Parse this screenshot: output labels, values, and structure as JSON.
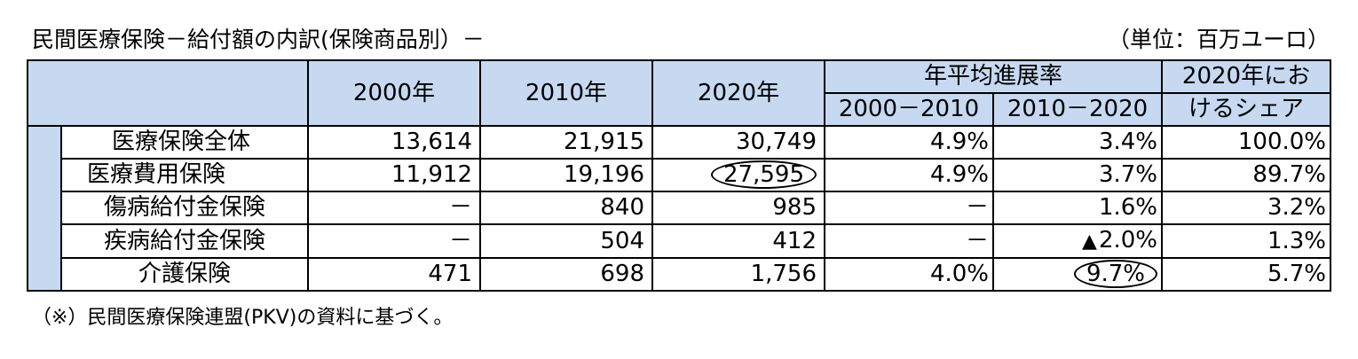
{
  "title": "民間医療保険－給付額の内訳(保険商品別）－",
  "unit": "（単位：百万ユーロ）",
  "headers": {
    "y2000": "2000年",
    "y2010": "2010年",
    "y2020": "2020年",
    "growth_group": "年平均進展率",
    "growth_a": "2000－2010",
    "growth_b": "2010－2020",
    "share_line1": "2020年にお",
    "share_line2": "けるシェア"
  },
  "rows": [
    {
      "label": "医療保険全体",
      "v2000": "13,614",
      "v2010": "21,915",
      "v2020": "30,749",
      "g1": "4.9%",
      "g2": "3.4%",
      "share": "100.0%"
    },
    {
      "label": "医療費用保険",
      "v2000": "11,912",
      "v2010": "19,196",
      "v2020": "27,595",
      "g1": "4.9%",
      "g2": "3.7%",
      "share": "89.7%"
    },
    {
      "label": "傷病給付金保険",
      "v2000": "－",
      "v2010": "840",
      "v2020": "985",
      "g1": "－",
      "g2": "1.6%",
      "share": "3.2%"
    },
    {
      "label": "疾病給付金保険",
      "v2000": "－",
      "v2010": "504",
      "v2020": "412",
      "g1": "－",
      "g2": "2.0%",
      "g2_marker": "▲",
      "share": "1.3%"
    },
    {
      "label": "介護保険",
      "v2000": "471",
      "v2010": "698",
      "v2020": "1,756",
      "g1": "4.0%",
      "g2": "9.7%",
      "share": "5.7%"
    }
  ],
  "note": "（※）民間医療保険連盟(PKV)の資料に基づく。",
  "colors": {
    "header_bg": "#c6d9f1",
    "border": "#000000"
  }
}
